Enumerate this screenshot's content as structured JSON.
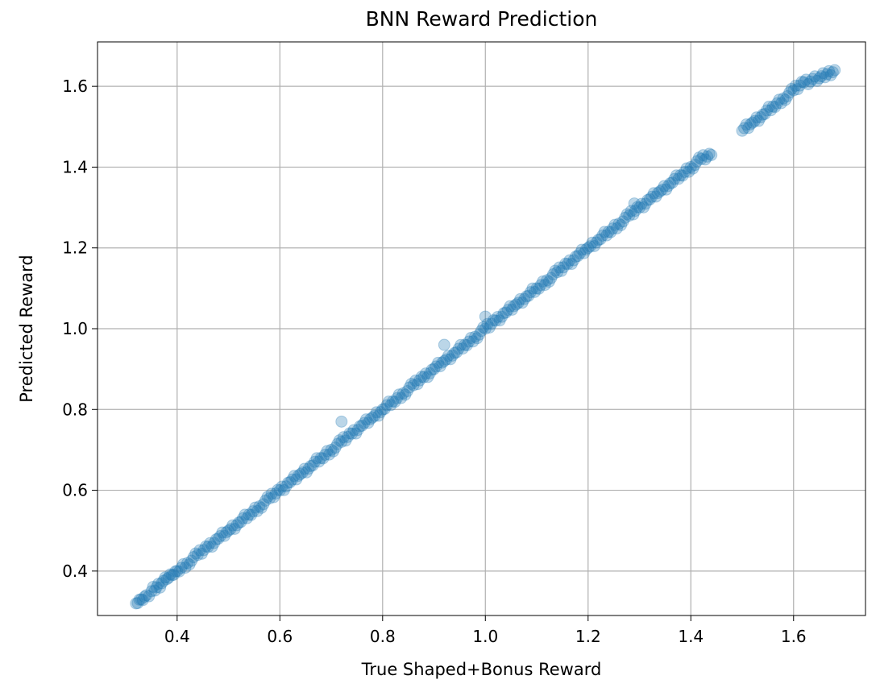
{
  "chart_data": {
    "type": "scatter",
    "title": "BNN Reward Prediction",
    "xlabel": "True Shaped+Bonus Reward",
    "ylabel": "Predicted Reward",
    "xlim": [
      0.245,
      1.74
    ],
    "ylim": [
      0.29,
      1.71
    ],
    "xticks": [
      0.4,
      0.6,
      0.8,
      1.0,
      1.2,
      1.4,
      1.6
    ],
    "xtick_labels": [
      "0.4",
      "0.6",
      "0.8",
      "1.0",
      "1.2",
      "1.4",
      "1.6"
    ],
    "yticks": [
      0.4,
      0.6,
      0.8,
      1.0,
      1.2,
      1.4,
      1.6
    ],
    "ytick_labels": [
      "0.4",
      "0.6",
      "0.8",
      "1.0",
      "1.2",
      "1.4",
      "1.6"
    ],
    "grid": true,
    "marker_color": "#1f77b4",
    "marker_alpha": 0.3,
    "series": [
      {
        "x": [
          0.32,
          0.33,
          0.34,
          0.35,
          0.36,
          0.37,
          0.38,
          0.39,
          0.4,
          0.42,
          0.44,
          0.46,
          0.48,
          0.5,
          0.52,
          0.54,
          0.56,
          0.58,
          0.6,
          0.62,
          0.64,
          0.66,
          0.68,
          0.7,
          0.72,
          0.74,
          0.76,
          0.78,
          0.8,
          0.82,
          0.84,
          0.86,
          0.88,
          0.9,
          0.92,
          0.94,
          0.96,
          0.98,
          1.0,
          1.02,
          1.04,
          1.06,
          1.08,
          1.1,
          1.12,
          1.14,
          1.16,
          1.18,
          1.2,
          1.22,
          1.24,
          1.26,
          1.28,
          1.3,
          1.32,
          1.34,
          1.36,
          1.38,
          1.4,
          1.42,
          1.44,
          1.5,
          1.52,
          1.54,
          1.56,
          1.58,
          1.6,
          1.62,
          1.65,
          1.68,
          0.92,
          1.0,
          1.29,
          0.72
        ],
        "y": [
          0.32,
          0.33,
          0.34,
          0.35,
          0.36,
          0.37,
          0.38,
          0.39,
          0.4,
          0.42,
          0.44,
          0.46,
          0.48,
          0.5,
          0.52,
          0.54,
          0.56,
          0.58,
          0.6,
          0.62,
          0.64,
          0.66,
          0.68,
          0.7,
          0.72,
          0.74,
          0.76,
          0.78,
          0.8,
          0.82,
          0.84,
          0.86,
          0.88,
          0.9,
          0.92,
          0.94,
          0.96,
          0.98,
          1.0,
          1.02,
          1.04,
          1.06,
          1.08,
          1.1,
          1.12,
          1.14,
          1.16,
          1.18,
          1.2,
          1.22,
          1.24,
          1.26,
          1.28,
          1.3,
          1.32,
          1.34,
          1.36,
          1.38,
          1.4,
          1.42,
          1.43,
          1.49,
          1.51,
          1.53,
          1.55,
          1.57,
          1.59,
          1.61,
          1.62,
          1.64,
          0.96,
          1.03,
          1.31,
          0.77
        ]
      }
    ]
  }
}
